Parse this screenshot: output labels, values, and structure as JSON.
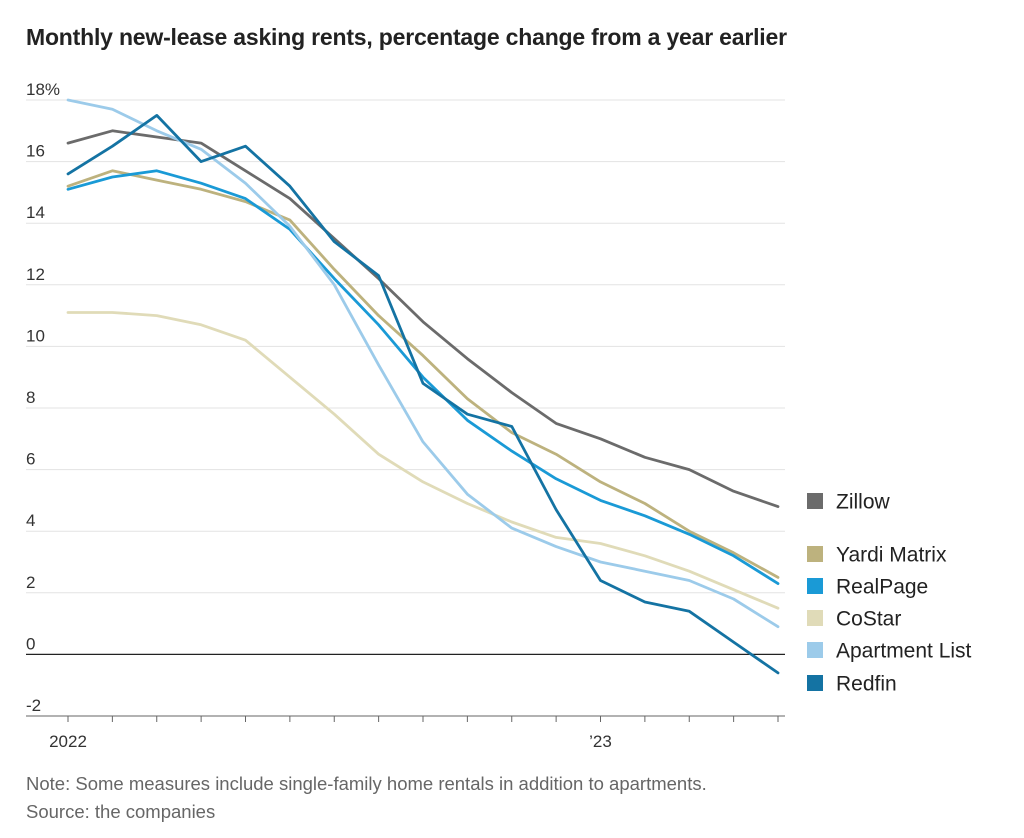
{
  "chart_data": {
    "type": "line",
    "title": "Monthly new-lease asking rents, percentage change from a year earlier",
    "xlabel": "",
    "ylabel": "",
    "x": [
      "2022-01",
      "2022-02",
      "2022-03",
      "2022-04",
      "2022-05",
      "2022-06",
      "2022-07",
      "2022-08",
      "2022-09",
      "2022-10",
      "2022-11",
      "2022-12",
      "2023-01",
      "2023-02",
      "2023-03",
      "2023-04",
      "2023-05"
    ],
    "x_tick_labels": [
      {
        "x": "2022-01",
        "label": "2022"
      },
      {
        "x": "2023-01",
        "label": "’23"
      }
    ],
    "y_ticks": [
      {
        "value": 18,
        "label": "18%"
      },
      {
        "value": 16,
        "label": "16"
      },
      {
        "value": 14,
        "label": "14"
      },
      {
        "value": 12,
        "label": "12"
      },
      {
        "value": 10,
        "label": "10"
      },
      {
        "value": 8,
        "label": "8"
      },
      {
        "value": 6,
        "label": "6"
      },
      {
        "value": 4,
        "label": "4"
      },
      {
        "value": 2,
        "label": "2"
      },
      {
        "value": 0,
        "label": "0"
      },
      {
        "value": -2,
        "label": "-2"
      }
    ],
    "ylim": [
      -2,
      18
    ],
    "grid": true,
    "legend": "right",
    "series": [
      {
        "name": "Zillow",
        "color": "#6b6b6b",
        "values": [
          16.6,
          17.0,
          16.8,
          16.6,
          15.7,
          14.8,
          13.5,
          12.2,
          10.8,
          9.6,
          8.5,
          7.5,
          7.0,
          6.4,
          6.0,
          5.3,
          4.8
        ]
      },
      {
        "name": "Yardi Matrix",
        "color": "#bdb27e",
        "values": [
          15.2,
          15.7,
          15.4,
          15.1,
          14.7,
          14.1,
          12.5,
          11.0,
          9.7,
          8.3,
          7.2,
          6.5,
          5.6,
          4.9,
          4.0,
          3.3,
          2.5
        ]
      },
      {
        "name": "RealPage",
        "color": "#1a9ad6",
        "values": [
          15.1,
          15.5,
          15.7,
          15.3,
          14.8,
          13.8,
          12.2,
          10.7,
          9.0,
          7.6,
          6.6,
          5.7,
          5.0,
          4.5,
          3.9,
          3.2,
          2.3
        ]
      },
      {
        "name": "CoStar",
        "color": "#e0dbb8",
        "values": [
          11.1,
          11.1,
          11.0,
          10.7,
          10.2,
          9.0,
          7.8,
          6.5,
          5.6,
          4.9,
          4.3,
          3.8,
          3.6,
          3.2,
          2.7,
          2.1,
          1.5
        ]
      },
      {
        "name": "Apartment List",
        "color": "#9ccbea",
        "values": [
          18.0,
          17.7,
          17.0,
          16.4,
          15.3,
          13.9,
          12.0,
          9.4,
          6.9,
          5.2,
          4.1,
          3.5,
          3.0,
          2.7,
          2.4,
          1.8,
          0.9
        ]
      },
      {
        "name": "Redfin",
        "color": "#1473a3",
        "values": [
          15.6,
          16.5,
          17.5,
          16.0,
          16.5,
          15.2,
          13.4,
          12.3,
          8.8,
          7.8,
          7.4,
          4.7,
          2.4,
          1.7,
          1.4,
          0.4,
          -0.6
        ]
      }
    ]
  },
  "note": "Note: Some measures include single-family home rentals in addition to apartments.",
  "source": "Source: the companies"
}
